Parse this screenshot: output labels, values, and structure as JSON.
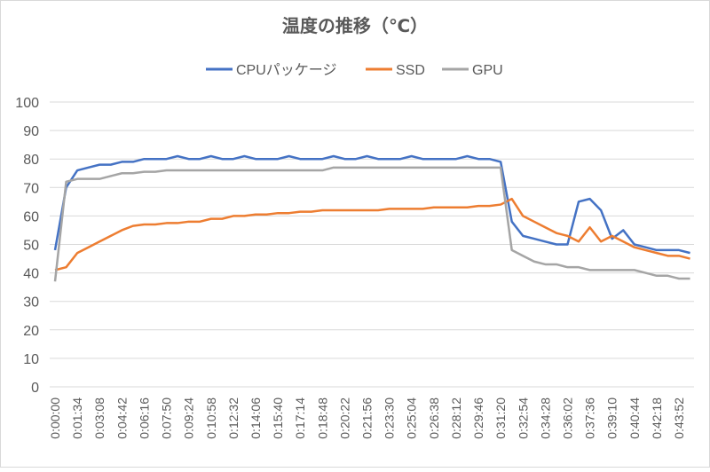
{
  "chart_data": {
    "type": "line",
    "title": "温度の推移（℃）",
    "categories": [
      "0:00:00",
      null,
      "0:01:34",
      null,
      "0:03:08",
      null,
      "0:04:42",
      null,
      "0:06:16",
      null,
      "0:07:50",
      null,
      "0:09:24",
      null,
      "0:10:58",
      null,
      "0:12:32",
      null,
      "0:14:06",
      null,
      "0:15:40",
      null,
      "0:17:14",
      null,
      "0:18:48",
      null,
      "0:20:22",
      null,
      "0:21:56",
      null,
      "0:23:30",
      null,
      "0:25:04",
      null,
      "0:26:38",
      null,
      "0:28:12",
      null,
      "0:29:46",
      null,
      "0:31:20",
      null,
      "0:32:54",
      null,
      "0:34:28",
      null,
      "0:36:02",
      null,
      "0:37:36",
      null,
      "0:39:10",
      null,
      "0:40:44",
      null,
      "0:42:18",
      null,
      "0:43:52",
      null
    ],
    "series": [
      {
        "name": "CPUパッケージ",
        "color": "#4472c4",
        "values": [
          48,
          70,
          76,
          77,
          78,
          78,
          79,
          79,
          80,
          80,
          80,
          81,
          80,
          80,
          81,
          80,
          80,
          81,
          80,
          80,
          80,
          81,
          80,
          80,
          80,
          81,
          80,
          80,
          81,
          80,
          80,
          80,
          81,
          80,
          80,
          80,
          80,
          81,
          80,
          80,
          79,
          58,
          53,
          52,
          51,
          50,
          50,
          65,
          66,
          62,
          52,
          55,
          50,
          49,
          48,
          48,
          48,
          47
        ]
      },
      {
        "name": "SSD",
        "color": "#ed7d31",
        "values": [
          41,
          42,
          47,
          49,
          51,
          53,
          55,
          56.5,
          57,
          57,
          57.5,
          57.5,
          58,
          58,
          59,
          59,
          60,
          60,
          60.5,
          60.5,
          61,
          61,
          61.5,
          61.5,
          62,
          62,
          62,
          62,
          62,
          62,
          62.5,
          62.5,
          62.5,
          62.5,
          63,
          63,
          63,
          63,
          63.5,
          63.5,
          64,
          66,
          60,
          58,
          56,
          54,
          53,
          51,
          56,
          51,
          53,
          51,
          49,
          48,
          47,
          46,
          46,
          45
        ]
      },
      {
        "name": "GPU",
        "color": "#a5a5a5",
        "values": [
          37,
          72,
          73,
          73,
          73,
          74,
          75,
          75,
          75.5,
          75.5,
          76,
          76,
          76,
          76,
          76,
          76,
          76,
          76,
          76,
          76,
          76,
          76,
          76,
          76,
          76,
          77,
          77,
          77,
          77,
          77,
          77,
          77,
          77,
          77,
          77,
          77,
          77,
          77,
          77,
          77,
          77,
          48,
          46,
          44,
          43,
          43,
          42,
          42,
          41,
          41,
          41,
          41,
          41,
          40,
          39,
          39,
          38,
          38
        ]
      }
    ],
    "ylim": [
      0,
      100
    ],
    "yticks": [
      0,
      10,
      20,
      30,
      40,
      50,
      60,
      70,
      80,
      90,
      100
    ],
    "grid": true,
    "legend": "top"
  }
}
